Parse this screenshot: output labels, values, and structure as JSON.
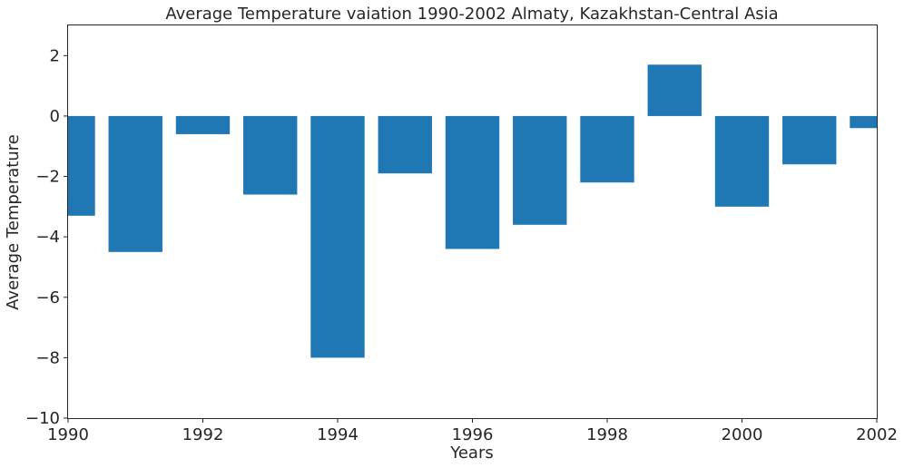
{
  "chart_data": {
    "type": "bar",
    "title": "Average Temperature vaiation 1990-2002 Almaty, Kazakhstan-Central Asia",
    "xlabel": "Years",
    "ylabel": "Average Temperature",
    "x": [
      1990,
      1991,
      1992,
      1993,
      1994,
      1995,
      1996,
      1997,
      1998,
      1999,
      2000,
      2001,
      2002
    ],
    "values": [
      -3.3,
      -4.5,
      -0.6,
      -2.6,
      -8.0,
      -1.9,
      -4.4,
      -3.6,
      -2.2,
      1.7,
      -3.0,
      -1.6,
      -0.4
    ],
    "xlim": [
      1990,
      2002
    ],
    "ylim": [
      -10,
      3
    ],
    "x_ticks": [
      1990,
      1992,
      1994,
      1996,
      1998,
      2000,
      2002
    ],
    "x_tick_labels": [
      "1990",
      "1992",
      "1994",
      "1996",
      "1998",
      "2000",
      "2002"
    ],
    "y_ticks": [
      -10,
      -8,
      -6,
      -4,
      -2,
      0,
      2
    ],
    "y_tick_labels": [
      "−10",
      "−8",
      "−6",
      "−4",
      "−2",
      "0",
      "2"
    ],
    "bar_color": "#1f77b4",
    "grid": false,
    "legend": "none"
  }
}
